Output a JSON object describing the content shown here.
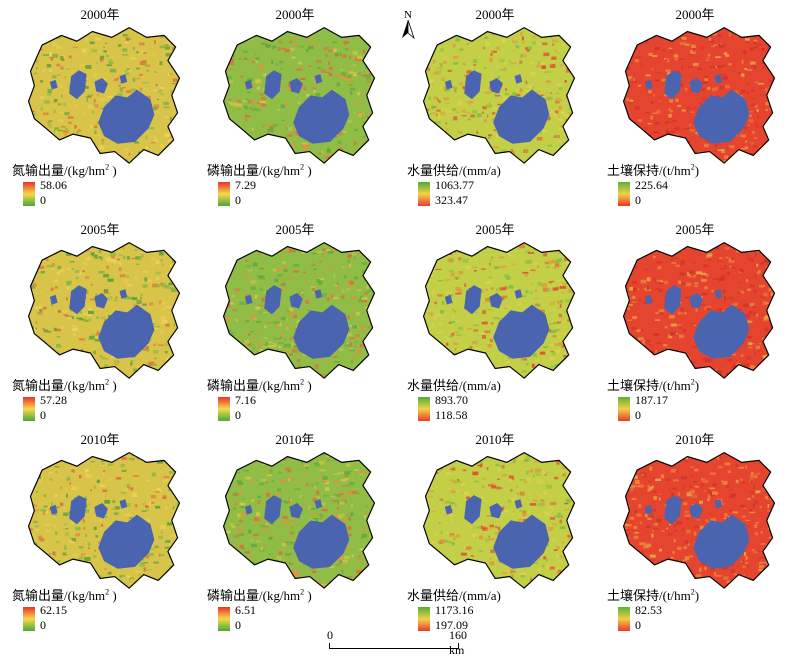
{
  "colors": {
    "water_body": "#4a64b0",
    "nutrient_ramp": [
      "#e8322c",
      "#f7d84a",
      "#47a93b"
    ],
    "water_supply_ramp": [
      "#4fae3a",
      "#f3d24a",
      "#ea3b2c"
    ],
    "soil_ramp": [
      "#58b23c",
      "#f2cf45",
      "#ea3a2a"
    ]
  },
  "north_arrow": {
    "label": "N"
  },
  "scale_bar": {
    "start": "0",
    "end": "160 km"
  },
  "rows": [
    {
      "year": "2000年",
      "panels": [
        {
          "service": "nitrogen",
          "year": "2000年",
          "title_pre": "氮输出量/(kg/hm",
          "title_sup": "2",
          "title_post": " )",
          "max": "58.06",
          "min": "0"
        },
        {
          "service": "phosphorus",
          "year": "2000年",
          "title_pre": "磷输出量/(kg/hm",
          "title_sup": "2",
          "title_post": " )",
          "max": "7.29",
          "min": "0"
        },
        {
          "service": "water",
          "year": "2000年",
          "title_pre": "水量供给/(mm/a)",
          "title_sup": "",
          "title_post": "",
          "max": "1063.77",
          "min": "323.47"
        },
        {
          "service": "soil",
          "year": "2000年",
          "title_pre": "土壤保持/(t/hm",
          "title_sup": "2",
          "title_post": ")",
          "max": "225.64",
          "min": "0"
        }
      ]
    },
    {
      "year": "2005年",
      "panels": [
        {
          "service": "nitrogen",
          "year": "2005年",
          "title_pre": "氮输出量/(kg/hm",
          "title_sup": "2",
          "title_post": " )",
          "max": "57.28",
          "min": "0"
        },
        {
          "service": "phosphorus",
          "year": "2005年",
          "title_pre": "磷输出量/(kg/hm",
          "title_sup": "2",
          "title_post": " )",
          "max": "7.16",
          "min": "0"
        },
        {
          "service": "water",
          "year": "2005年",
          "title_pre": "水量供给/(mm/a)",
          "title_sup": "",
          "title_post": "",
          "max": "893.70",
          "min": "118.58"
        },
        {
          "service": "soil",
          "year": "2005年",
          "title_pre": "土壤保持/(t/hm",
          "title_sup": "2",
          "title_post": ")",
          "max": "187.17",
          "min": "0"
        }
      ]
    },
    {
      "year": "2010年",
      "panels": [
        {
          "service": "nitrogen",
          "year": "2010年",
          "title_pre": "氮输出量/(kg/hm",
          "title_sup": "2",
          "title_post": " )",
          "max": "62.15",
          "min": "0"
        },
        {
          "service": "phosphorus",
          "year": "2010年",
          "title_pre": "磷输出量/(kg/hm",
          "title_sup": "2",
          "title_post": " )",
          "max": "6.51",
          "min": "0"
        },
        {
          "service": "water",
          "year": "2010年",
          "title_pre": "水量供给/(mm/a)",
          "title_sup": "",
          "title_post": "",
          "max": "1173.16",
          "min": "197.09"
        },
        {
          "service": "soil",
          "year": "2010年",
          "title_pre": "土壤保持/(t/hm",
          "title_sup": "2",
          "title_post": ")",
          "max": "82.53",
          "min": "0"
        }
      ]
    }
  ]
}
